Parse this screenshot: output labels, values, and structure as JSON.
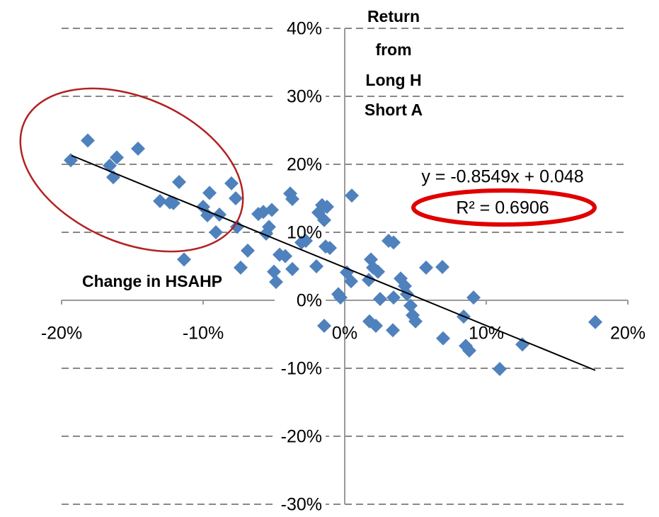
{
  "chart_data": {
    "type": "scatter",
    "y_label": [
      "Return",
      "from",
      "Long H",
      "Short A"
    ],
    "x_label": "Change in HSAHP",
    "annotations": [
      "y = -0.8549x + 0.048",
      "R² = 0.6906"
    ],
    "color": "#4f81bd",
    "xlim": [
      -20,
      20
    ],
    "ylim": [
      -30,
      40
    ],
    "xticks": [
      {
        "value": -20,
        "label": "-20%"
      },
      {
        "value": -10,
        "label": "-10%"
      },
      {
        "value": 0,
        "label": "0%"
      },
      {
        "value": 10,
        "label": "10%"
      },
      {
        "value": 20,
        "label": "20%"
      }
    ],
    "yticks": [
      {
        "value": -30,
        "label": "-30%"
      },
      {
        "value": -20,
        "label": "-20%"
      },
      {
        "value": -10,
        "label": "-10%"
      },
      {
        "value": 0,
        "label": "0%"
      },
      {
        "value": 10,
        "label": "10%"
      },
      {
        "value": 20,
        "label": "20%"
      },
      {
        "value": 30,
        "label": "30%"
      },
      {
        "value": 40,
        "label": "40%"
      }
    ],
    "grid": true,
    "x": [
      -19.35,
      -18.15,
      -16.6,
      -16.35,
      -16.1,
      -14.6,
      -13.05,
      -12.35,
      -12.1,
      -11.7,
      -11.35,
      -10.0,
      -9.7,
      -9.55,
      -9.1,
      -8.85,
      -8.0,
      -7.7,
      -7.6,
      -7.35,
      -6.85,
      -6.1,
      -5.75,
      -5.55,
      -5.35,
      -5.15,
      -5.0,
      -4.85,
      -4.6,
      -4.2,
      -3.7,
      -3.85,
      -3.7,
      -3.05,
      -2.75,
      -2.0,
      -1.85,
      -1.6,
      -1.45,
      -1.25,
      -1.35,
      -1.05,
      -1.45,
      -0.45,
      -0.3,
      0.15,
      0.45,
      0.5,
      1.7,
      1.85,
      1.75,
      2.0,
      2.2,
      2.35,
      2.5,
      3.1,
      3.45,
      3.4,
      3.45,
      3.95,
      4.25,
      4.4,
      4.65,
      4.8,
      5.0,
      5.75,
      6.95,
      6.9,
      8.4,
      8.55,
      8.8,
      9.1,
      10.95,
      12.55,
      17.7
    ],
    "values": [
      20.6,
      23.5,
      19.8,
      18.1,
      21.0,
      22.3,
      14.6,
      14.4,
      14.3,
      17.4,
      6.0,
      13.75,
      12.5,
      15.8,
      10.0,
      12.6,
      17.2,
      15.0,
      10.8,
      4.8,
      7.3,
      12.7,
      13.0,
      9.8,
      10.8,
      13.3,
      4.2,
      2.7,
      6.7,
      6.5,
      4.6,
      15.7,
      14.9,
      8.5,
      8.75,
      5.0,
      12.9,
      14.0,
      11.8,
      13.75,
      7.9,
      7.7,
      -3.75,
      0.9,
      0.4,
      4.1,
      2.8,
      15.4,
      3.0,
      6.0,
      -3.1,
      4.8,
      -3.75,
      4.2,
      0.2,
      8.75,
      8.5,
      -4.4,
      0.4,
      3.2,
      2.1,
      0.9,
      -0.8,
      -2.2,
      -3.1,
      4.8,
      -5.6,
      4.9,
      -2.4,
      -6.7,
      -7.4,
      0.4,
      -10.1,
      -6.5,
      -3.2
    ],
    "trendline": {
      "x": [
        -19.3,
        17.7
      ],
      "values": [
        21.3,
        -10.3
      ],
      "color": "#000000"
    }
  }
}
